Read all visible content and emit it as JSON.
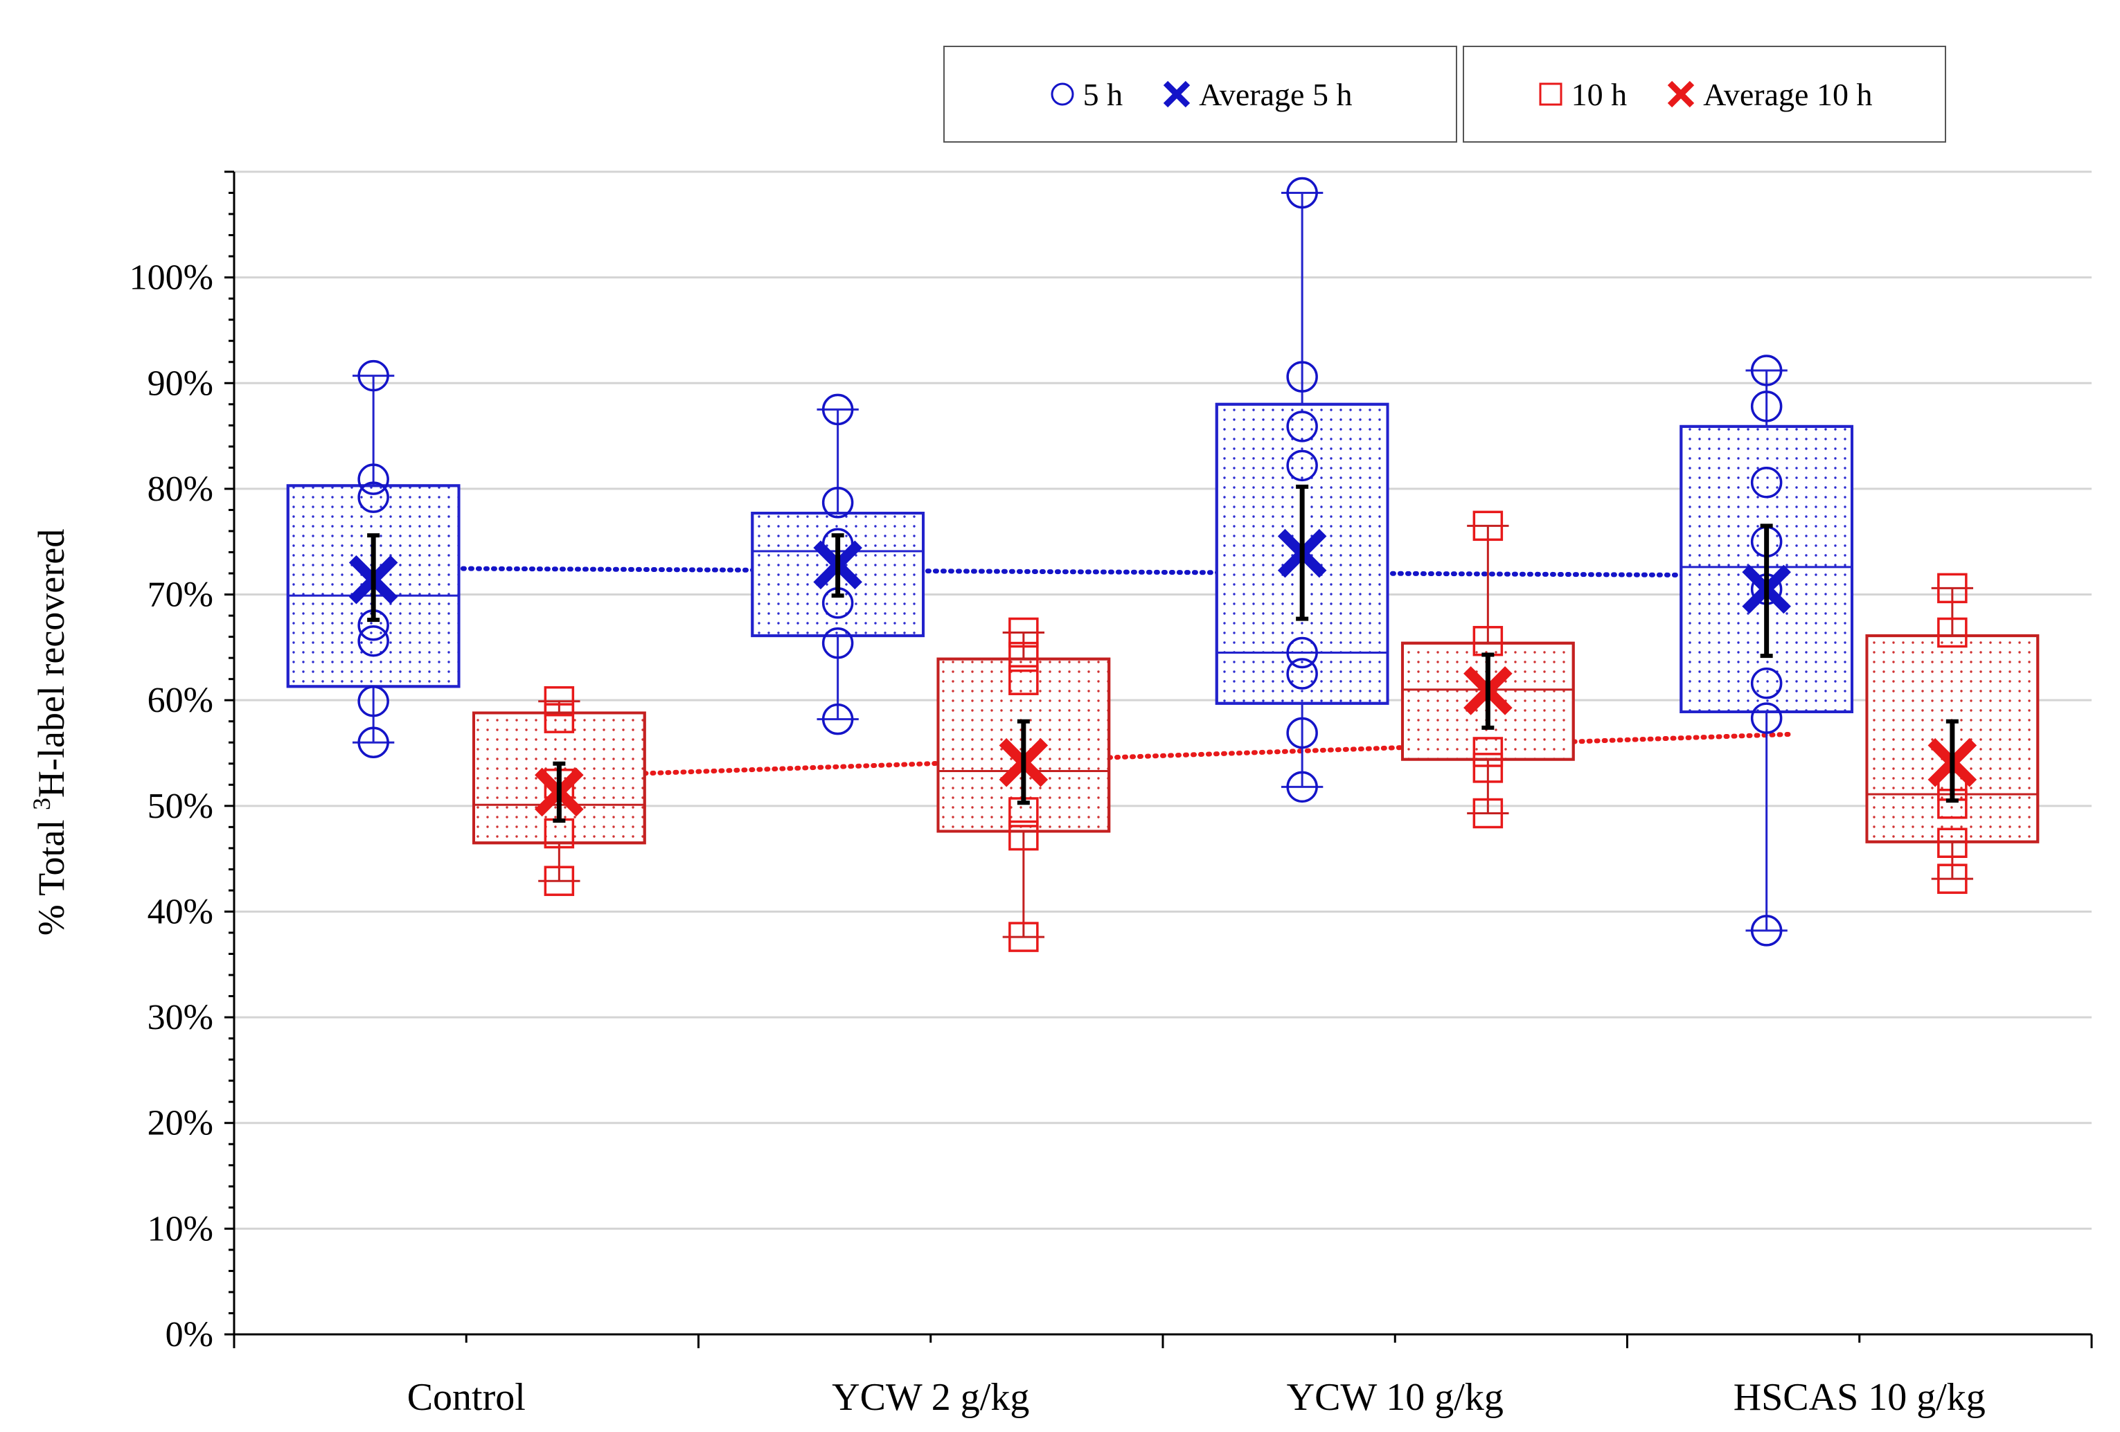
{
  "chart_data": {
    "type": "box",
    "ylabel_prefix": "% Total ",
    "ylabel_sup": "3",
    "ylabel_suffix": "H-label recovered",
    "xlabel": "",
    "ylim": [
      0,
      110
    ],
    "yticks": [
      0,
      10,
      20,
      30,
      40,
      50,
      60,
      70,
      80,
      90,
      100
    ],
    "ytick_labels": [
      "0%",
      "10%",
      "20%",
      "30%",
      "40%",
      "50%",
      "60%",
      "70%",
      "80%",
      "90%",
      "100%"
    ],
    "categories": [
      "Control",
      "YCW 2 g/kg",
      "YCW 10 g/kg",
      "HSCAS 10 g/kg"
    ],
    "legend": [
      {
        "name": "5 h",
        "marker": "circle",
        "color": "#1414c8"
      },
      {
        "name": "Average 5 h",
        "marker": "x",
        "color": "#1414c8"
      },
      {
        "name": "10 h",
        "marker": "square",
        "color": "#e8191a"
      },
      {
        "name": "Average 10 h",
        "marker": "x",
        "color": "#e8191a"
      }
    ],
    "series": [
      {
        "name": "5 h",
        "color": "#1414c8",
        "box_color": "#2222cc",
        "boxes": [
          {
            "category": "Control",
            "min": 56.0,
            "q1": 61.3,
            "median": 69.9,
            "q3": 80.3,
            "max": 90.7,
            "mean": 71.4,
            "err_low": 67.6,
            "err_high": 75.6,
            "points": [
              90.7,
              80.9,
              79.2,
              67.1,
              65.6,
              59.9,
              56.0
            ]
          },
          {
            "category": "YCW 2 g/kg",
            "min": 58.2,
            "q1": 66.1,
            "median": 74.1,
            "q3": 77.7,
            "max": 87.5,
            "mean": 72.8,
            "err_low": 69.9,
            "err_high": 75.6,
            "points": [
              87.5,
              78.7,
              74.8,
              69.2,
              65.4,
              58.2
            ]
          },
          {
            "category": "YCW 10 g/kg",
            "min": 51.8,
            "q1": 59.7,
            "median": 64.5,
            "q3": 88.0,
            "max": 108.0,
            "mean": 73.9,
            "err_low": 67.7,
            "err_high": 80.2,
            "points": [
              108.0,
              90.6,
              85.9,
              82.2,
              64.5,
              62.5,
              56.9,
              51.8
            ]
          },
          {
            "category": "HSCAS 10 g/kg",
            "min": 38.2,
            "q1": 58.9,
            "median": 72.6,
            "q3": 85.9,
            "max": 91.2,
            "mean": 70.5,
            "err_low": 64.2,
            "err_high": 76.5,
            "points": [
              91.2,
              87.8,
              80.6,
              75.0,
              70.5,
              61.6,
              58.3,
              38.2
            ]
          }
        ],
        "trend": [
          72.5,
          72.3,
          72.1,
          71.8
        ]
      },
      {
        "name": "10 h",
        "color": "#e8191a",
        "box_color": "#c42020",
        "boxes": [
          {
            "category": "Control",
            "min": 42.9,
            "q1": 46.5,
            "median": 50.1,
            "q3": 58.8,
            "max": 59.9,
            "mean": 51.3,
            "err_low": 48.6,
            "err_high": 54.0,
            "points": [
              59.9,
              58.3,
              52.1,
              47.4,
              42.9
            ]
          },
          {
            "category": "YCW 2 g/kg",
            "min": 37.6,
            "q1": 47.6,
            "median": 53.3,
            "q3": 63.9,
            "max": 66.4,
            "mean": 54.1,
            "err_low": 50.3,
            "err_high": 58.0,
            "points": [
              66.4,
              64.1,
              61.9,
              49.4,
              47.2,
              37.6
            ]
          },
          {
            "category": "YCW 10 g/kg",
            "min": 49.3,
            "q1": 54.4,
            "median": 61.0,
            "q3": 65.4,
            "max": 76.5,
            "mean": 60.9,
            "err_low": 57.4,
            "err_high": 64.3,
            "points": [
              76.5,
              65.6,
              55.1,
              53.6,
              49.3
            ]
          },
          {
            "category": "HSCAS 10 g/kg",
            "min": 43.1,
            "q1": 46.6,
            "median": 51.1,
            "q3": 66.1,
            "max": 70.6,
            "mean": 54.1,
            "err_low": 50.5,
            "err_high": 58.0,
            "points": [
              70.6,
              66.4,
              51.9,
              50.2,
              46.5,
              43.1
            ]
          }
        ],
        "trend": [
          52.8,
          54.3,
          55.8,
          57.3
        ]
      }
    ],
    "trend_style": "dotted"
  }
}
